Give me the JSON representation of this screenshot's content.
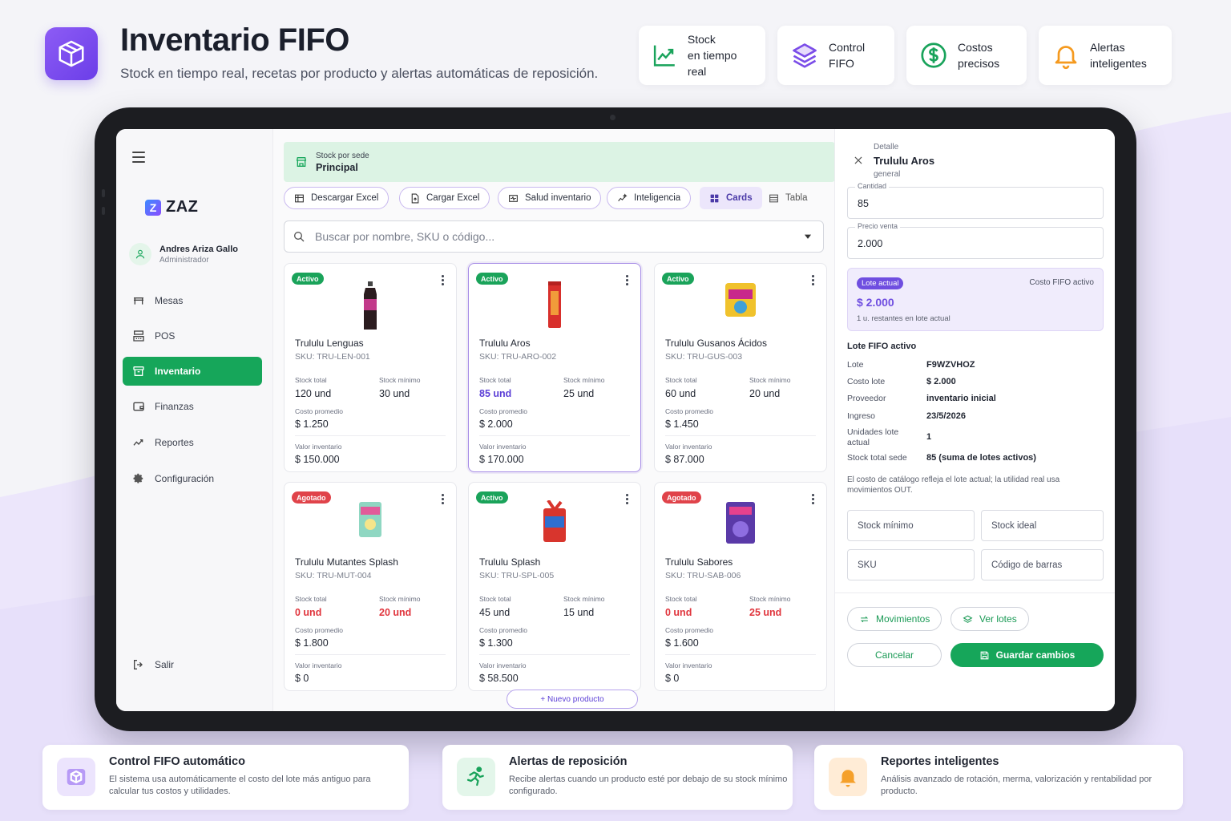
{
  "header": {
    "title": "Inventario FIFO",
    "subtitle": "Stock en tiempo real, recetas por producto y alertas automáticas de reposición.",
    "logo_icon": "box-icon"
  },
  "features": [
    {
      "line1": "Stock",
      "line2": "en tiempo real",
      "icon": "chart-line-icon",
      "color": "#19a35b"
    },
    {
      "line1": "Control",
      "line2": "FIFO",
      "icon": "layers-icon",
      "color": "#7b4de8"
    },
    {
      "line1": "Costos",
      "line2": "precisos",
      "icon": "dollar-circle-icon",
      "color": "#19a35b"
    },
    {
      "line1": "Alertas",
      "line2": "inteligentes",
      "icon": "bell-icon",
      "color": "#f59a1f"
    }
  ],
  "sidebar": {
    "brand": "ZAZ",
    "brand_mark": "Z",
    "user_name": "Andres Ariza Gallo",
    "user_role": "Administrador",
    "items": [
      {
        "label": "Mesas",
        "icon": "table-icon"
      },
      {
        "label": "POS",
        "icon": "register-icon"
      },
      {
        "label": "Inventario",
        "icon": "inventory-icon"
      },
      {
        "label": "Finanzas",
        "icon": "wallet-icon"
      },
      {
        "label": "Reportes",
        "icon": "trend-icon"
      },
      {
        "label": "Configuración",
        "icon": "gear-icon"
      }
    ],
    "logout": "Salir"
  },
  "banner": {
    "label": "Stock por sede",
    "value": "Principal"
  },
  "toolbar": {
    "download": "Descargar Excel",
    "upload": "Cargar Excel",
    "health": "Salud inventario",
    "intel": "Inteligencia",
    "cards": "Cards",
    "table": "Tabla"
  },
  "search": {
    "placeholder": "Buscar por nombre, SKU o código..."
  },
  "labels": {
    "stock_total": "Stock total",
    "stock_min": "Stock mínimo",
    "cost_avg": "Costo promedio",
    "inv_value": "Valor inventario"
  },
  "products": [
    {
      "status": "Activo",
      "name": "Trululu Lenguas",
      "sku": "SKU: TRU-LEN-001",
      "stock": "120 und",
      "min": "30 und",
      "cost": "$ 1.250",
      "value": "$ 150.000"
    },
    {
      "status": "Activo",
      "name": "Trululu Aros",
      "sku": "SKU: TRU-ARO-002",
      "stock": "85 und",
      "min": "25 und",
      "cost": "$ 2.000",
      "value": "$ 170.000"
    },
    {
      "status": "Activo",
      "name": "Trululu Gusanos Ácidos",
      "sku": "SKU: TRU-GUS-003",
      "stock": "60 und",
      "min": "20 und",
      "cost": "$ 1.450",
      "value": "$ 87.000"
    },
    {
      "status": "Agotado",
      "name": "Trululu Mutantes Splash",
      "sku": "SKU: TRU-MUT-004",
      "stock": "0 und",
      "min": "20 und",
      "cost": "$ 1.800",
      "value": "$ 0"
    },
    {
      "status": "Activo",
      "name": "Trululu Splash",
      "sku": "SKU: TRU-SPL-005",
      "stock": "45 und",
      "min": "15 und",
      "cost": "$ 1.300",
      "value": "$ 58.500"
    },
    {
      "status": "Agotado",
      "name": "Trululu Sabores",
      "sku": "SKU: TRU-SAB-006",
      "stock": "0 und",
      "min": "25 und",
      "cost": "$ 1.600",
      "value": "$ 0"
    }
  ],
  "new_product": "+ Nuevo producto",
  "detail": {
    "overline": "Detalle",
    "name": "Trululu Aros",
    "category": "general",
    "qty_label": "Cantidad",
    "qty": "85",
    "price_label": "Precio venta",
    "price": "2.000",
    "lote_badge": "Lote actual",
    "lote_right": "Costo FIFO activo",
    "lote_cost": "$ 2.000",
    "lote_note": "1 u. restantes en lote actual",
    "section": "Lote FIFO activo",
    "kv": [
      {
        "k": "Lote",
        "v": "F9WZVHOZ"
      },
      {
        "k": "Costo lote",
        "v": "$ 2.000"
      },
      {
        "k": "Proveedor",
        "v": "inventario inicial"
      },
      {
        "k": "Ingreso",
        "v": "23/5/2026"
      },
      {
        "k": "Unidades lote actual",
        "v": "1"
      },
      {
        "k": "Stock total sede",
        "v": "85 (suma de lotes activos)"
      }
    ],
    "note": "El costo de catálogo refleja el lote actual; la utilidad real usa movimientos OUT.",
    "stock_min": "Stock mínimo",
    "stock_ideal": "Stock ideal",
    "sku": "SKU",
    "barcode": "Código de barras",
    "movements": "Movimientos",
    "lots": "Ver lotes",
    "cancel": "Cancelar",
    "save": "Guardar cambios"
  },
  "bottom": [
    {
      "title": "Control FIFO automático",
      "desc": "El sistema usa automáticamente el costo del lote más antiguo para calcular tus costos y utilidades.",
      "icon": "box-icon"
    },
    {
      "title": "Alertas de reposición",
      "desc": "Recibe alertas cuando un producto esté por debajo de su stock mínimo configurado.",
      "icon": "runner-icon"
    },
    {
      "title": "Reportes inteligentes",
      "desc": "Análisis avanzado de rotación, merma, valorización y rentabilidad por producto.",
      "icon": "bell-icon"
    }
  ],
  "colors": {
    "brand_purple": "#7b4de8",
    "green": "#16a65a",
    "red": "#e0343c"
  }
}
